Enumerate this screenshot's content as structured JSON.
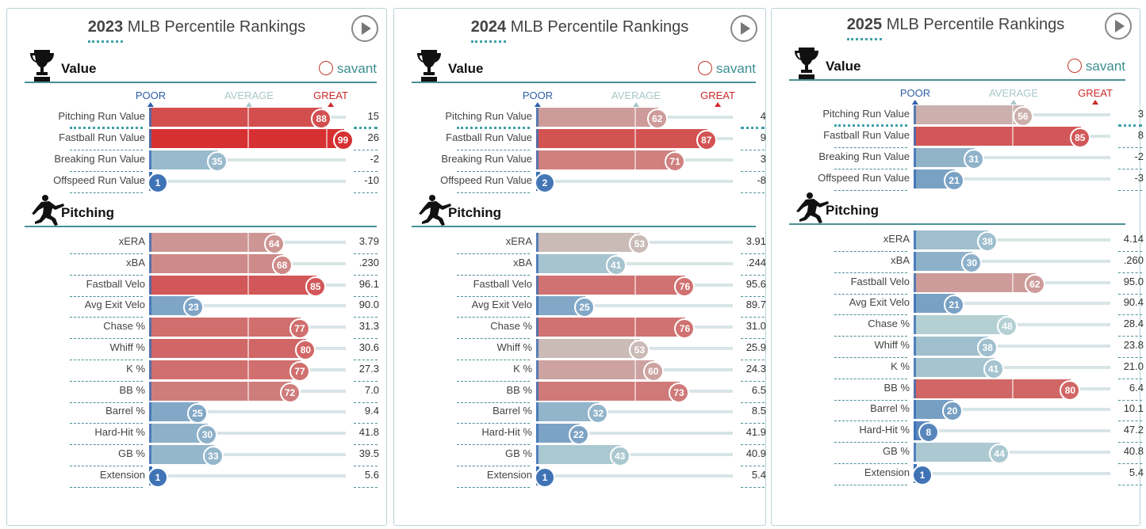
{
  "page": {
    "scale": {
      "poor": "POOR",
      "average": "AVERAGE",
      "great": "GREAT"
    },
    "savant_label": "savant",
    "section_value_label": "Value",
    "section_pitching_label": "Pitching"
  },
  "colors": {
    "poor": "#3b6fb5",
    "average": "#c7c0bc",
    "great": "#d62d2f",
    "poor_label": "#2e5ea8",
    "average_label": "#a8c7c7",
    "great_label": "#cc2a2a",
    "accent": "#3fa0a8"
  },
  "chart_data": [
    {
      "type": "bar",
      "title": "2023 MLB Percentile Rankings",
      "year": "2023",
      "title_rest": "MLB Percentile Rankings",
      "value_metrics": [
        {
          "name": "Pitching Run Value",
          "percentile": 88,
          "value": "15"
        },
        {
          "name": "Fastball Run Value",
          "percentile": 99,
          "value": "26"
        },
        {
          "name": "Breaking Run Value",
          "percentile": 35,
          "value": "-2"
        },
        {
          "name": "Offspeed Run Value",
          "percentile": 1,
          "value": "-10"
        }
      ],
      "pitching_metrics": [
        {
          "name": "xERA",
          "percentile": 64,
          "value": "3.79"
        },
        {
          "name": "xBA",
          "percentile": 68,
          "value": ".230"
        },
        {
          "name": "Fastball Velo",
          "percentile": 85,
          "value": "96.1"
        },
        {
          "name": "Avg Exit Velo",
          "percentile": 23,
          "value": "90.0"
        },
        {
          "name": "Chase %",
          "percentile": 77,
          "value": "31.3"
        },
        {
          "name": "Whiff %",
          "percentile": 80,
          "value": "30.6"
        },
        {
          "name": "K %",
          "percentile": 77,
          "value": "27.3"
        },
        {
          "name": "BB %",
          "percentile": 72,
          "value": "7.0"
        },
        {
          "name": "Barrel %",
          "percentile": 25,
          "value": "9.4"
        },
        {
          "name": "Hard-Hit %",
          "percentile": 30,
          "value": "41.8"
        },
        {
          "name": "GB %",
          "percentile": 33,
          "value": "39.5"
        },
        {
          "name": "Extension",
          "percentile": 1,
          "value": "5.6"
        }
      ]
    },
    {
      "type": "bar",
      "title": "2024 MLB Percentile Rankings",
      "year": "2024",
      "title_rest": "MLB Percentile Rankings",
      "value_metrics": [
        {
          "name": "Pitching Run Value",
          "percentile": 62,
          "value": "4"
        },
        {
          "name": "Fastball Run Value",
          "percentile": 87,
          "value": "9"
        },
        {
          "name": "Breaking Run Value",
          "percentile": 71,
          "value": "3"
        },
        {
          "name": "Offspeed Run Value",
          "percentile": 2,
          "value": "-8"
        }
      ],
      "pitching_metrics": [
        {
          "name": "xERA",
          "percentile": 53,
          "value": "3.91"
        },
        {
          "name": "xBA",
          "percentile": 41,
          "value": ".244"
        },
        {
          "name": "Fastball Velo",
          "percentile": 76,
          "value": "95.6"
        },
        {
          "name": "Avg Exit Velo",
          "percentile": 25,
          "value": "89.7"
        },
        {
          "name": "Chase %",
          "percentile": 76,
          "value": "31.0"
        },
        {
          "name": "Whiff %",
          "percentile": 53,
          "value": "25.9"
        },
        {
          "name": "K %",
          "percentile": 60,
          "value": "24.3"
        },
        {
          "name": "BB %",
          "percentile": 73,
          "value": "6.5"
        },
        {
          "name": "Barrel %",
          "percentile": 32,
          "value": "8.5"
        },
        {
          "name": "Hard-Hit %",
          "percentile": 22,
          "value": "41.9"
        },
        {
          "name": "GB %",
          "percentile": 43,
          "value": "40.9"
        },
        {
          "name": "Extension",
          "percentile": 1,
          "value": "5.4"
        }
      ]
    },
    {
      "type": "bar",
      "title": "2025 MLB Percentile Rankings",
      "year": "2025",
      "title_rest": "MLB Percentile Rankings",
      "value_metrics": [
        {
          "name": "Pitching Run Value",
          "percentile": 56,
          "value": "3"
        },
        {
          "name": "Fastball Run Value",
          "percentile": 85,
          "value": "8"
        },
        {
          "name": "Breaking Run Value",
          "percentile": 31,
          "value": "-2"
        },
        {
          "name": "Offspeed Run Value",
          "percentile": 21,
          "value": "-3"
        }
      ],
      "pitching_metrics": [
        {
          "name": "xERA",
          "percentile": 38,
          "value": "4.14"
        },
        {
          "name": "xBA",
          "percentile": 30,
          "value": ".260"
        },
        {
          "name": "Fastball Velo",
          "percentile": 62,
          "value": "95.0"
        },
        {
          "name": "Avg Exit Velo",
          "percentile": 21,
          "value": "90.4"
        },
        {
          "name": "Chase %",
          "percentile": 48,
          "value": "28.4"
        },
        {
          "name": "Whiff %",
          "percentile": 38,
          "value": "23.8"
        },
        {
          "name": "K %",
          "percentile": 41,
          "value": "21.0"
        },
        {
          "name": "BB %",
          "percentile": 80,
          "value": "6.4"
        },
        {
          "name": "Barrel %",
          "percentile": 20,
          "value": "10.1"
        },
        {
          "name": "Hard-Hit %",
          "percentile": 8,
          "value": "47.2"
        },
        {
          "name": "GB %",
          "percentile": 44,
          "value": "40.8"
        },
        {
          "name": "Extension",
          "percentile": 1,
          "value": "5.4"
        }
      ]
    }
  ]
}
